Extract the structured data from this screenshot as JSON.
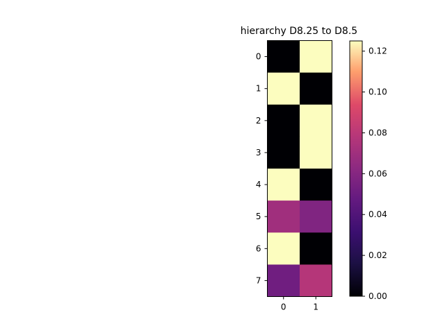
{
  "chart_data": {
    "type": "heatmap",
    "title": "hierarchy D8.25 to D8.5",
    "xlabel": "",
    "ylabel": "",
    "x_ticks": [
      "0",
      "1"
    ],
    "y_ticks": [
      "0",
      "1",
      "2",
      "3",
      "4",
      "5",
      "6",
      "7"
    ],
    "values": [
      [
        0.0,
        0.125
      ],
      [
        0.125,
        0.0
      ],
      [
        0.0,
        0.125
      ],
      [
        0.0,
        0.125
      ],
      [
        0.125,
        0.0
      ],
      [
        0.07,
        0.058
      ],
      [
        0.125,
        0.0
      ],
      [
        0.052,
        0.078
      ]
    ],
    "colormap": "magma",
    "vmin": 0.0,
    "vmax": 0.125,
    "colorbar_ticks": [
      "0.00",
      "0.02",
      "0.04",
      "0.06",
      "0.08",
      "0.10",
      "0.12"
    ],
    "colorbar_tick_values": [
      0.0,
      0.02,
      0.04,
      0.06,
      0.08,
      0.1,
      0.12
    ]
  }
}
